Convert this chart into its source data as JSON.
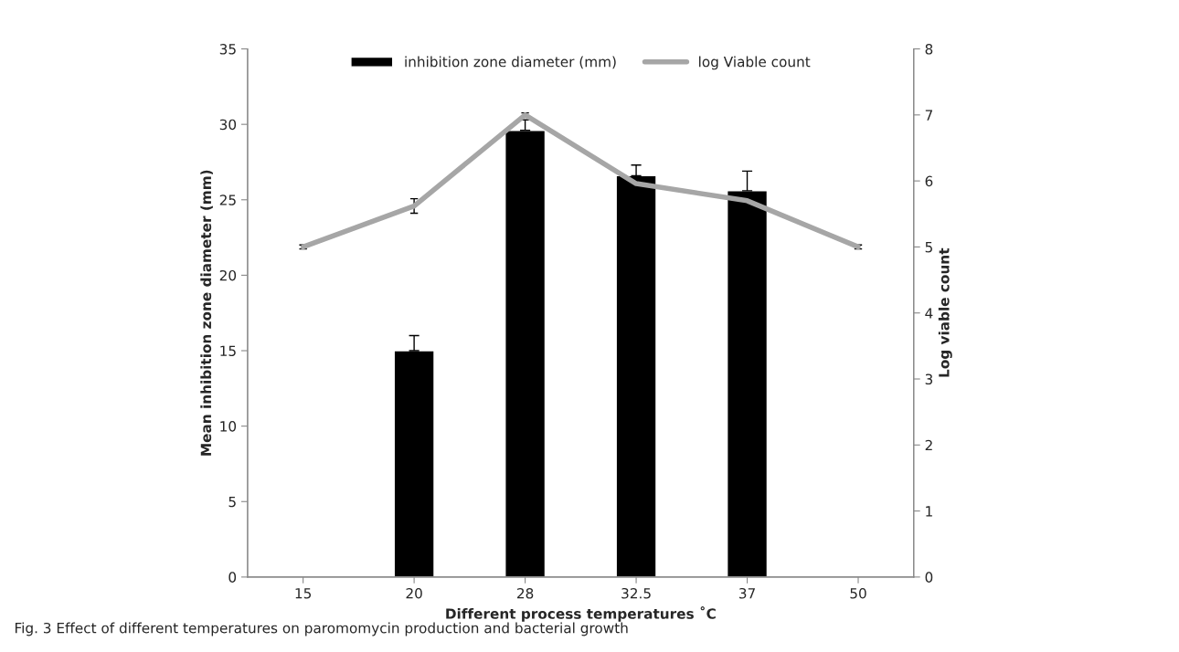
{
  "chart_data": {
    "type": "bar",
    "categories": [
      "15",
      "20",
      "28",
      "32.5",
      "37",
      "50"
    ],
    "xlabel": "Different process temperatures ˚C",
    "ylabel": "Mean inhibition zone diameter (mm)",
    "y2label": "Log viable count",
    "series": [
      {
        "name": "inhibition zone diameter (mm)",
        "color": "#000000",
        "values": [
          null,
          15.0,
          29.6,
          26.6,
          25.6,
          null
        ],
        "errors": [
          null,
          [
            15.0,
            16.0
          ],
          [
            29.6,
            30.3
          ],
          [
            26.6,
            27.3
          ],
          [
            25.6,
            26.9
          ],
          null
        ]
      },
      {
        "name": "log Viable count",
        "type": "line",
        "axis": "y2",
        "color": "#a6a6a6",
        "values": [
          5.0,
          5.62,
          7.0,
          5.96,
          5.7,
          5.0
        ],
        "errors": [
          0.03,
          0.11,
          0.03,
          null,
          null,
          0.03
        ]
      }
    ],
    "ylim": [
      0,
      35
    ],
    "yticks": [
      0,
      5,
      10,
      15,
      20,
      25,
      30,
      35
    ],
    "y2lim": [
      0,
      8
    ],
    "y2ticks": [
      0,
      1,
      2,
      3,
      4,
      5,
      6,
      7,
      8
    ],
    "grid": false,
    "legend": "top",
    "marker": "none",
    "line_style": "solid",
    "annotations": [
      "Fig. 3 Effect of different temperatures on paromomycin production and bacterial growth"
    ]
  }
}
